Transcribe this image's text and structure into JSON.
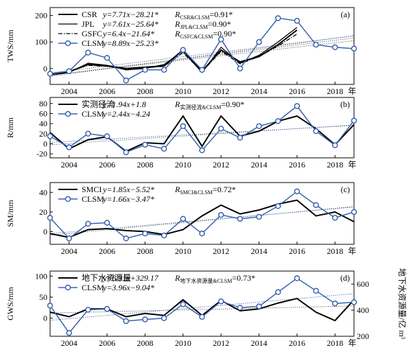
{
  "chart_data": [
    {
      "type": "line",
      "panel_label": "(a)",
      "ylabel": "TWS/mm",
      "xlim": [
        2003,
        2019
      ],
      "ylim": [
        -60,
        230
      ],
      "yticks": [
        0,
        100,
        200
      ],
      "xticks": [
        2004,
        2006,
        2008,
        2010,
        2012,
        2014,
        2016,
        2018
      ],
      "x_year_suffix": "年",
      "series": [
        {
          "name": "CSR",
          "style": "solid-thick",
          "x": [
            2003,
            2004,
            2005,
            2006,
            2007,
            2008,
            2009,
            2010,
            2011,
            2012,
            2013,
            2014,
            2015,
            2016
          ],
          "values": [
            -20,
            -12,
            15,
            10,
            0,
            5,
            10,
            70,
            -10,
            70,
            25,
            45,
            90,
            145
          ]
        },
        {
          "name": "JPL",
          "style": "solid",
          "x": [
            2003,
            2004,
            2005,
            2006,
            2007,
            2008,
            2009,
            2010,
            2011,
            2012,
            2013,
            2014,
            2015,
            2016
          ],
          "values": [
            -25,
            -15,
            20,
            12,
            -5,
            0,
            15,
            65,
            -15,
            80,
            20,
            50,
            100,
            155
          ]
        },
        {
          "name": "GSFC",
          "style": "dashdot",
          "x": [
            2003,
            2004,
            2005,
            2006,
            2007,
            2008,
            2009,
            2010,
            2011,
            2012,
            2013,
            2014,
            2015,
            2016
          ],
          "values": [
            -20,
            -10,
            12,
            8,
            -2,
            3,
            8,
            60,
            -12,
            65,
            18,
            45,
            85,
            130
          ]
        },
        {
          "name": "CLSM",
          "style": "marker",
          "x": [
            2003,
            2004,
            2005,
            2006,
            2007,
            2008,
            2009,
            2010,
            2011,
            2012,
            2013,
            2014,
            2015,
            2016,
            2017,
            2018,
            2019
          ],
          "values": [
            -20,
            -10,
            60,
            40,
            -45,
            -5,
            -5,
            70,
            -5,
            110,
            0,
            100,
            190,
            180,
            90,
            80,
            75
          ]
        }
      ],
      "annotations": [
        {
          "eq": "y=7.71x−28.21*",
          "r": "R",
          "r_sub": "CSR&CLSM",
          "r_val": "=0.91*"
        },
        {
          "eq": "y=7.61x−25.64*",
          "r": "R",
          "r_sub": "JPL&CLSM",
          "r_val": "=0.90*"
        },
        {
          "eq": "y=6.4x−21.64*",
          "r": "R",
          "r_sub": "GSFC&CLSM",
          "r_val": "=0.90*"
        },
        {
          "eq": "y=8.89x−25.23*",
          "r": "",
          "r_sub": "",
          "r_val": ""
        }
      ]
    },
    {
      "type": "line",
      "panel_label": "(b)",
      "ylabel": "R/mm",
      "xlim": [
        2003,
        2019
      ],
      "ylim": [
        -28,
        92
      ],
      "yticks": [
        -20,
        0,
        20,
        40,
        60,
        80
      ],
      "xticks": [
        2004,
        2006,
        2008,
        2010,
        2012,
        2014,
        2016,
        2018
      ],
      "x_year_suffix": "年",
      "series": [
        {
          "name": "实测径流",
          "style": "solid-thick",
          "x": [
            2003,
            2004,
            2005,
            2006,
            2007,
            2008,
            2009,
            2010,
            2011,
            2012,
            2013,
            2014,
            2015,
            2016,
            2017,
            2018,
            2019
          ],
          "values": [
            22,
            -10,
            8,
            14,
            -15,
            2,
            0,
            55,
            -5,
            55,
            15,
            25,
            45,
            55,
            30,
            -2,
            38
          ]
        },
        {
          "name": "CLSM",
          "style": "marker",
          "x": [
            2003,
            2004,
            2005,
            2006,
            2007,
            2008,
            2009,
            2010,
            2011,
            2012,
            2013,
            2014,
            2015,
            2016,
            2017,
            2018,
            2019
          ],
          "values": [
            15,
            -7,
            20,
            15,
            -17,
            -2,
            -10,
            35,
            -13,
            30,
            12,
            35,
            45,
            75,
            25,
            -3,
            46
          ]
        }
      ],
      "annotations": [
        {
          "eq": "y=1.94x+1.8",
          "r": "R",
          "r_sub": "实测径流&CLSM",
          "r_val": "=0.90*"
        },
        {
          "eq": "y=2.44x−4.24",
          "r": "",
          "r_sub": "",
          "r_val": ""
        }
      ]
    },
    {
      "type": "line",
      "panel_label": "(c)",
      "ylabel": "SM/mm",
      "xlim": [
        2003,
        2019
      ],
      "ylim": [
        -13,
        50
      ],
      "yticks": [
        0,
        20,
        40
      ],
      "xticks": [
        2004,
        2006,
        2008,
        2010,
        2012,
        2014,
        2016,
        2018
      ],
      "x_year_suffix": "年",
      "series": [
        {
          "name": "SMCI",
          "style": "solid-thick",
          "x": [
            2003,
            2004,
            2005,
            2006,
            2007,
            2008,
            2009,
            2010,
            2011,
            2012,
            2013,
            2014,
            2015,
            2016,
            2017,
            2018,
            2019
          ],
          "values": [
            -2,
            -6,
            2,
            3,
            1,
            0,
            -3,
            2,
            16,
            27,
            18,
            22,
            28,
            32,
            16,
            20,
            10
          ]
        },
        {
          "name": "CLSM",
          "style": "marker",
          "x": [
            2003,
            2004,
            2005,
            2006,
            2007,
            2008,
            2009,
            2010,
            2011,
            2012,
            2013,
            2014,
            2015,
            2016,
            2017,
            2018,
            2019
          ],
          "values": [
            14,
            -7,
            8,
            9,
            -7,
            -2,
            -4,
            13,
            -2,
            17,
            13,
            15,
            26,
            41,
            27,
            14,
            20
          ]
        }
      ],
      "annotations": [
        {
          "eq": "y=1.85x−5.52*",
          "r": "R",
          "r_sub": "SMCI&CLSM",
          "r_val": "=0.72*"
        },
        {
          "eq": "y=1.66x−3.47*",
          "r": "",
          "r_sub": "",
          "r_val": ""
        }
      ]
    },
    {
      "type": "line",
      "panel_label": "(d)",
      "ylabel": "GWS/mm",
      "ylabel_right": "地下水资源量/亿 m³",
      "xlim": [
        2003,
        2019
      ],
      "ylim": [
        -43,
        112
      ],
      "yticks": [
        0,
        50,
        100
      ],
      "ylim_right": [
        200,
        700
      ],
      "yticks_right": [
        200,
        400,
        600
      ],
      "xticks": [
        2004,
        2006,
        2008,
        2010,
        2012,
        2014,
        2016,
        2018
      ],
      "x_year_suffix": "年",
      "series": [
        {
          "name": "地下水资源量",
          "style": "solid-thick",
          "axis": "right",
          "x": [
            2003,
            2004,
            2005,
            2006,
            2007,
            2008,
            2009,
            2010,
            2011,
            2012,
            2013,
            2014,
            2015,
            2016,
            2017,
            2018,
            2019
          ],
          "values": [
            385,
            350,
            410,
            410,
            350,
            375,
            360,
            480,
            360,
            475,
            395,
            410,
            455,
            490,
            385,
            320,
            480
          ]
        },
        {
          "name": "CLSM",
          "style": "marker",
          "axis": "left",
          "x": [
            2003,
            2004,
            2005,
            2006,
            2007,
            2008,
            2009,
            2010,
            2011,
            2012,
            2013,
            2014,
            2015,
            2016,
            2017,
            2018,
            2019
          ],
          "values": [
            30,
            -35,
            20,
            22,
            -7,
            -3,
            0,
            33,
            3,
            40,
            25,
            28,
            62,
            95,
            65,
            35,
            38
          ]
        }
      ],
      "annotations": [
        {
          "eq": "y=6.31x+329.17",
          "r": "R",
          "r_sub": "地下水资源量&CLSM",
          "r_val": "=0.73*"
        },
        {
          "eq": "y=3.96x−9.04*",
          "r": "",
          "r_sub": "",
          "r_val": ""
        }
      ]
    }
  ]
}
